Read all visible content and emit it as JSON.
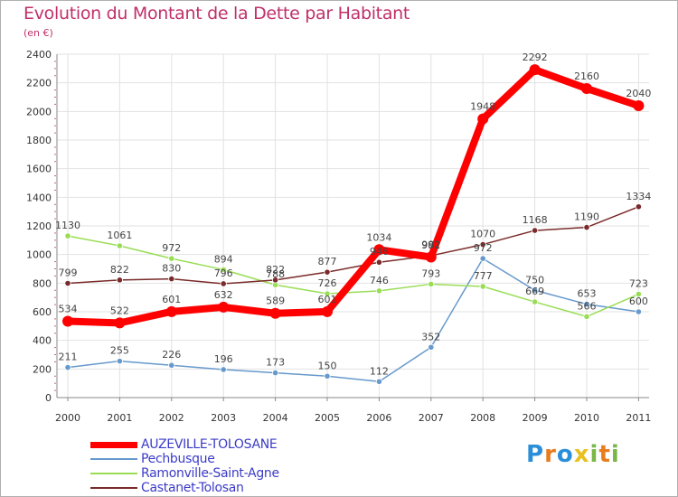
{
  "header": {
    "title": "Evolution du Montant de la Dette par Habitant",
    "subtitle": "(en €)"
  },
  "chart_data": {
    "type": "line",
    "title": "Evolution du Montant de la Dette par Habitant",
    "subtitle": "(en €)",
    "x": [
      "2000",
      "2001",
      "2002",
      "2003",
      "2004",
      "2005",
      "2006",
      "2007",
      "2008",
      "2009",
      "2010",
      "2011"
    ],
    "ylim": [
      0,
      2400
    ],
    "yticks": [
      0,
      200,
      400,
      600,
      800,
      1000,
      1200,
      1400,
      1600,
      1800,
      2000,
      2200,
      2400
    ],
    "legend_position": "bottom-left",
    "series": [
      {
        "name": "AUZEVILLE-TOLOSANE",
        "color": "#ff0000",
        "values": [
          534,
          522,
          601,
          632,
          589,
          601,
          1034,
          982,
          1948,
          2292,
          2160,
          2040
        ]
      },
      {
        "name": "Pechbusque",
        "color": "#6699cc",
        "values": [
          211,
          255,
          226,
          196,
          173,
          150,
          112,
          352,
          972,
          750,
          653,
          600
        ]
      },
      {
        "name": "Ramonville-Saint-Agne",
        "color": "#99dd55",
        "values": [
          1130,
          1061,
          972,
          894,
          788,
          726,
          746,
          793,
          777,
          669,
          566,
          723
        ]
      },
      {
        "name": "Castanet-Tolosan",
        "color": "#7a2a2a",
        "values": [
          799,
          822,
          830,
          796,
          822,
          877,
          946,
          992,
          1070,
          1168,
          1190,
          1334
        ]
      }
    ]
  },
  "logo": {
    "letters": [
      "P",
      "r",
      "o",
      "x",
      "i",
      "t",
      "i"
    ],
    "colors": [
      "#2a8fd8",
      "#e87d1e",
      "#2a8fd8",
      "#e8c020",
      "#7ab648",
      "#e87d1e",
      "#7ab648"
    ]
  }
}
